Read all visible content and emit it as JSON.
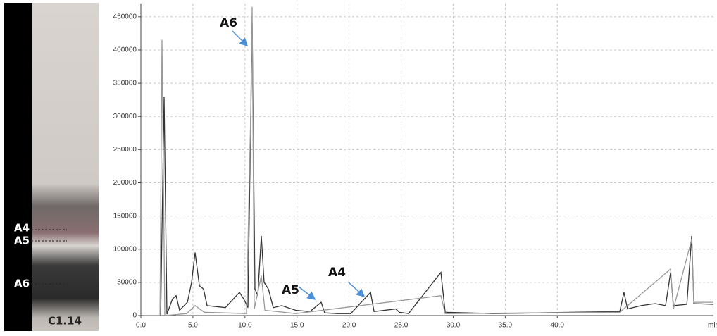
{
  "chart_data": {
    "type": "line",
    "xlabel": "min",
    "xlim": [
      0,
      55
    ],
    "ylim": [
      0,
      470000
    ],
    "xticks": [
      {
        "value": 0,
        "label": "0.0"
      },
      {
        "value": 5,
        "label": "5.0"
      },
      {
        "value": 10,
        "label": "10.0"
      },
      {
        "value": 15,
        "label": "15.0"
      },
      {
        "value": 20,
        "label": "20.0"
      },
      {
        "value": 25,
        "label": "25.0"
      },
      {
        "value": 30,
        "label": "30.0"
      },
      {
        "value": 35,
        "label": "35.0"
      },
      {
        "value": 40,
        "label": "40.0"
      }
    ],
    "yticks": [
      0,
      50000,
      100000,
      150000,
      200000,
      250000,
      300000,
      350000,
      400000,
      450000
    ],
    "grid": true,
    "series": [
      {
        "color": "#333333",
        "x": [
          0.34,
          1.9,
          2.23,
          2.5,
          3.04,
          3.38,
          3.72,
          4.47,
          4.87,
          5.21,
          5.62,
          6.02,
          6.36,
          8.12,
          9.47,
          9.88,
          10.28,
          10.69,
          10.96,
          11.23,
          11.57,
          11.84,
          12.25,
          12.72,
          13.53,
          14.88,
          16.24,
          17.32,
          17.66,
          18.94,
          20.16,
          22.06,
          22.4,
          24.49,
          24.83,
          25.71,
          28.82,
          29.23,
          33.83,
          46.0,
          46.4,
          46.75,
          48.04,
          49.39,
          50.4,
          50.88,
          51.15,
          52.44,
          52.91,
          53.11,
          55.0
        ],
        "values": [
          0,
          0,
          330000,
          2000,
          25000,
          30000,
          8000,
          20000,
          50000,
          95000,
          45000,
          40000,
          15000,
          12000,
          35000,
          25000,
          12000,
          440000,
          40000,
          30000,
          120000,
          50000,
          40000,
          12000,
          15000,
          8000,
          6000,
          20000,
          4000,
          3000,
          3000,
          35000,
          6000,
          10000,
          5000,
          3000,
          65000,
          5000,
          3000,
          6000,
          35000,
          10000,
          15000,
          18000,
          15000,
          65000,
          15000,
          17000,
          120000,
          18000,
          17000
        ]
      },
      {
        "color": "#999999",
        "x": [
          0.34,
          1.83,
          2.03,
          2.3,
          4.4,
          5.21,
          6.09,
          10.15,
          10.55,
          10.69,
          10.89,
          11.57,
          11.91,
          14.88,
          28.82,
          29.23,
          46.0,
          50.88,
          51.15,
          52.91,
          53.11,
          55.0
        ],
        "values": [
          0,
          0,
          415000,
          0,
          3000,
          15000,
          5000,
          3000,
          300000,
          465000,
          10000,
          60000,
          8000,
          3000,
          30000,
          3000,
          5000,
          70000,
          10000,
          115000,
          20000,
          20000
        ]
      }
    ],
    "annotations": [
      "A6",
      "A5",
      "A4"
    ]
  },
  "plate": {
    "labels": [
      "A4",
      "A5",
      "A6"
    ],
    "caption": "C1.14"
  }
}
